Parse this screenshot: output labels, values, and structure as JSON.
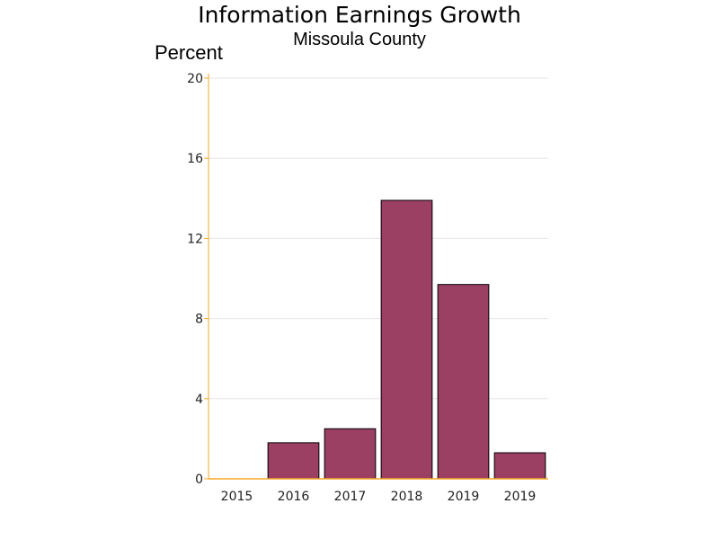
{
  "chart_data": {
    "type": "bar",
    "title": "Information Earnings Growth",
    "subtitle": "Missoula County",
    "ylabel": "Percent",
    "xlabel": "",
    "categories": [
      "2015",
      "2016",
      "2017",
      "2018",
      "2019",
      "2019"
    ],
    "values": [
      0,
      1.8,
      2.5,
      13.9,
      9.7,
      1.3
    ],
    "ylim": [
      0,
      20
    ],
    "yticks": [
      0,
      4,
      8,
      12,
      16,
      20
    ],
    "grid": true,
    "legend": "none",
    "colors": {
      "bar": "#9c4063",
      "bar_edge": "#000000",
      "axis": "#f5a623",
      "grid": "#e6e6e6"
    }
  }
}
